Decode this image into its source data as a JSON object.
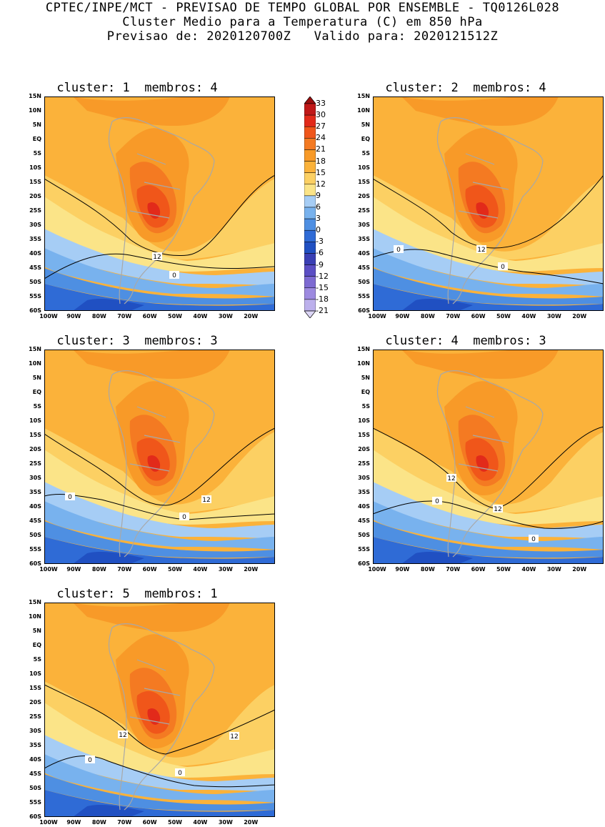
{
  "header": {
    "line1": "CPTEC/INPE/MCT - PREVISAO DE TEMPO GLOBAL POR ENSEMBLE - TQ0126L028",
    "line2": "Cluster Medio para a Temperatura (C) em 850 hPa",
    "line3": "Previsao de: 2020120700Z   Valido para: 2020121512Z"
  },
  "lat_labels": [
    "15N",
    "10N",
    "5N",
    "EQ",
    "5S",
    "10S",
    "15S",
    "20S",
    "25S",
    "30S",
    "35S",
    "40S",
    "45S",
    "50S",
    "55S",
    "60S"
  ],
  "lon_labels": [
    "100W",
    "90W",
    "80W",
    "70W",
    "60W",
    "50W",
    "40W",
    "30W",
    "20W"
  ],
  "colorbar": {
    "levels": [
      "33",
      "30",
      "27",
      "24",
      "21",
      "18",
      "15",
      "12",
      "9",
      "6",
      "3",
      "0",
      "-3",
      "-6",
      "-9",
      "-12",
      "-15",
      "-18",
      "-21"
    ],
    "colors": [
      "#9a0e0e",
      "#c01818",
      "#e22a1a",
      "#f0561a",
      "#f47a22",
      "#f89a28",
      "#fbb23a",
      "#fcd063",
      "#fbe488",
      "#a6cdf5",
      "#78b2ee",
      "#4e8fe2",
      "#2f6bd6",
      "#2050c2",
      "#3a3fb4",
      "#5b4ec4",
      "#7d6ad2",
      "#9d8ae0",
      "#bcb0ec",
      "#dcd6f6"
    ]
  },
  "clusters": [
    {
      "title": "cluster: 1  membros: 4",
      "contour_labels": [
        "12",
        "0"
      ]
    },
    {
      "title": "cluster: 2  membros: 4",
      "contour_labels": [
        "12",
        "0",
        "0"
      ]
    },
    {
      "title": "cluster: 3  membros: 3",
      "contour_labels": [
        "12",
        "0",
        "0"
      ]
    },
    {
      "title": "cluster: 4  membros: 3",
      "contour_labels": [
        "12",
        "12",
        "0",
        "0"
      ]
    },
    {
      "title": "cluster: 5  membros: 1",
      "contour_labels": [
        "12",
        "12",
        "0",
        "0"
      ]
    }
  ]
}
